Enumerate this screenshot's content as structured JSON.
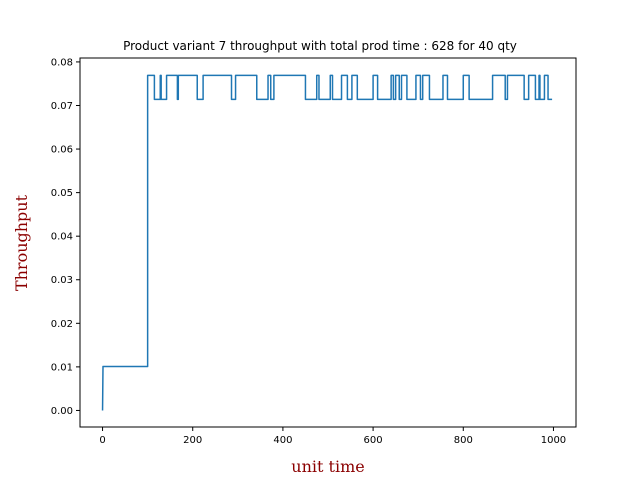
{
  "chart_data": {
    "type": "line",
    "title": "Product variant 7 throughput with total prod time : 628 for 40 qty",
    "xlabel": "unit time",
    "ylabel": "Throughput",
    "xlim": [
      -50,
      1050
    ],
    "ylim": [
      -0.0038,
      0.0809
    ],
    "xticks": [
      0,
      200,
      400,
      600,
      800,
      1000
    ],
    "yticks": [
      0.0,
      0.01,
      0.02,
      0.03,
      0.04,
      0.05,
      0.06,
      0.07,
      0.08
    ],
    "x_tick_labels": [
      "0",
      "200",
      "400",
      "600",
      "800",
      "1000"
    ],
    "y_tick_labels": [
      "0.00",
      "0.01",
      "0.02",
      "0.03",
      "0.04",
      "0.05",
      "0.06",
      "0.07",
      "0.08"
    ],
    "grid": false,
    "series": [
      {
        "color": "#1f77b4",
        "x": [
          0,
          1,
          100,
          100,
          102,
          102,
          115,
          115,
          128,
          128,
          130,
          130,
          142,
          142,
          166,
          166,
          168,
          168,
          210,
          210,
          223,
          223,
          286,
          286,
          295,
          295,
          342,
          342,
          367,
          367,
          373,
          373,
          380,
          380,
          383,
          383,
          450,
          450,
          475,
          475,
          480,
          480,
          505,
          505,
          510,
          510,
          530,
          530,
          543,
          543,
          553,
          553,
          565,
          565,
          600,
          600,
          610,
          610,
          640,
          640,
          645,
          645,
          650,
          650,
          658,
          658,
          663,
          663,
          675,
          675,
          695,
          695,
          705,
          705,
          710,
          710,
          725,
          725,
          755,
          755,
          765,
          765,
          800,
          800,
          813,
          813,
          865,
          865,
          893,
          893,
          898,
          898,
          935,
          935,
          945,
          945,
          960,
          960,
          968,
          968,
          970,
          970,
          980,
          980,
          988,
          988,
          997
        ],
        "y": [
          0.0,
          0.0101,
          0.0101,
          0.0769,
          0.0769,
          0.0769,
          0.0769,
          0.0714,
          0.0714,
          0.0769,
          0.0769,
          0.0714,
          0.0714,
          0.0769,
          0.0769,
          0.0714,
          0.0714,
          0.0769,
          0.0769,
          0.0714,
          0.0714,
          0.0769,
          0.0769,
          0.0714,
          0.0714,
          0.0769,
          0.0769,
          0.0714,
          0.0714,
          0.0769,
          0.0769,
          0.0714,
          0.0714,
          0.0769,
          0.0769,
          0.0769,
          0.0769,
          0.0714,
          0.0714,
          0.0769,
          0.0769,
          0.0714,
          0.0714,
          0.0769,
          0.0769,
          0.0714,
          0.0714,
          0.0769,
          0.0769,
          0.0714,
          0.0714,
          0.0769,
          0.0769,
          0.0714,
          0.0714,
          0.0769,
          0.0769,
          0.0714,
          0.0714,
          0.0769,
          0.0769,
          0.0714,
          0.0714,
          0.0769,
          0.0769,
          0.0714,
          0.0714,
          0.0769,
          0.0769,
          0.0714,
          0.0714,
          0.0769,
          0.0769,
          0.0714,
          0.0714,
          0.0769,
          0.0769,
          0.0714,
          0.0714,
          0.0769,
          0.0769,
          0.0714,
          0.0714,
          0.0769,
          0.0769,
          0.0714,
          0.0714,
          0.0769,
          0.0769,
          0.0714,
          0.0714,
          0.0769,
          0.0769,
          0.0714,
          0.0714,
          0.0769,
          0.0769,
          0.0714,
          0.0714,
          0.0769,
          0.0769,
          0.0714,
          0.0714,
          0.0769,
          0.0769,
          0.0714,
          0.0714
        ]
      }
    ]
  }
}
